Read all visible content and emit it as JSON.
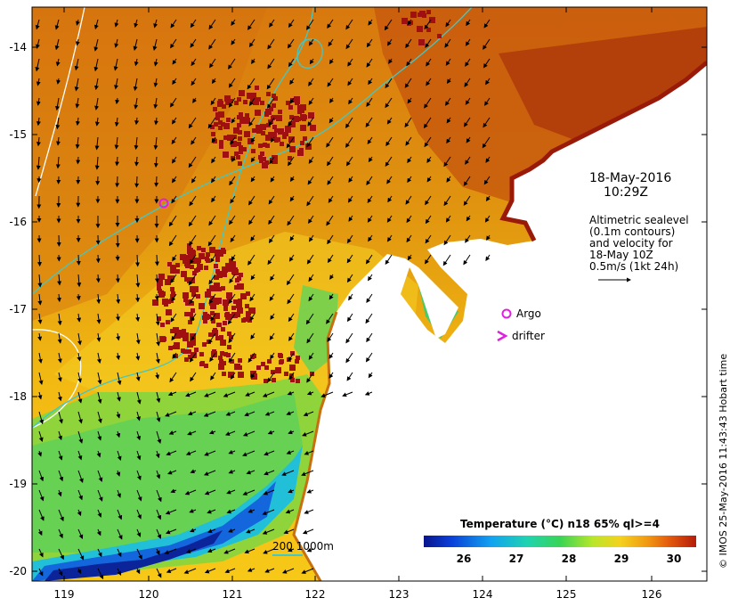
{
  "map": {
    "lat_labels": [
      "-14",
      "-15",
      "-16",
      "-17",
      "-18",
      "-19",
      "-20"
    ],
    "lon_labels": [
      "119",
      "120",
      "121",
      "122",
      "123",
      "124",
      "125",
      "126"
    ]
  },
  "datetime": {
    "date": "18-May-2016",
    "time": "10:29Z"
  },
  "altimetry_note": {
    "lines": [
      "Altimetric sealevel",
      "(0.1m contours)",
      "and velocity for",
      "18-May 10Z",
      "0.5m/s (1kt 24h)"
    ]
  },
  "legend": {
    "argo_label": "Argo",
    "drifter_label": "drifter",
    "marker_color": "#e020e0"
  },
  "colorbar": {
    "title": "Temperature (°C) n18 65% ql>=4",
    "ticks": [
      "26",
      "27",
      "28",
      "29",
      "30"
    ]
  },
  "scalebar": {
    "label": "200 1000m",
    "color": "#3fc9c9"
  },
  "copyright": "© IMOS 25-May-2016 11:43:43 Hobart time"
}
